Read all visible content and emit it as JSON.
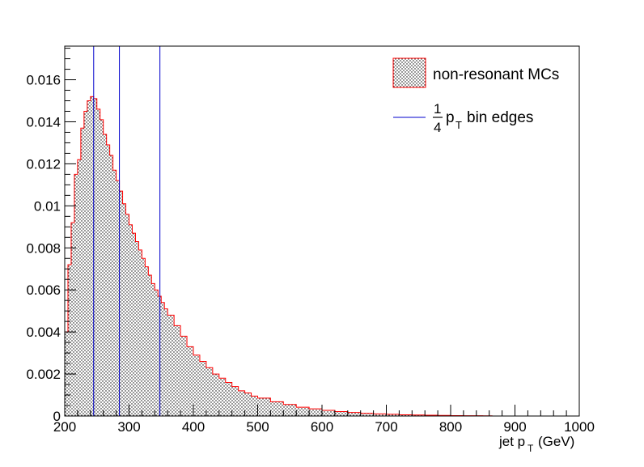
{
  "chart_data": {
    "type": "histogram",
    "title": "",
    "xlabel": "jet p",
    "xlabel_subscript": "T",
    "xlabel_unit": "(GeV)",
    "ylabel": "",
    "xlim": [
      200,
      1000
    ],
    "ylim": [
      0,
      0.0176
    ],
    "x_ticks": [
      200,
      300,
      400,
      500,
      600,
      700,
      800,
      900,
      1000
    ],
    "x_tick_labels": [
      "200",
      "300",
      "400",
      "500",
      "600",
      "700",
      "800",
      "900",
      "1000"
    ],
    "y_ticks": [
      0,
      0.002,
      0.004,
      0.006,
      0.008,
      0.01,
      0.012,
      0.014,
      0.016
    ],
    "y_tick_labels": [
      "0",
      "0.002",
      "0.004",
      "0.006",
      "0.008",
      "0.01",
      "0.012",
      "0.014",
      "0.016"
    ],
    "grid": false,
    "legend_position": "top-right",
    "series": [
      {
        "name": "non-resonant MCs",
        "color": "#ff0000",
        "fill": "dotted",
        "points": [
          [
            200,
            0.004
          ],
          [
            205,
            0.0072
          ],
          [
            210,
            0.0092
          ],
          [
            215,
            0.0115
          ],
          [
            220,
            0.0122
          ],
          [
            225,
            0.0137
          ],
          [
            230,
            0.0145
          ],
          [
            235,
            0.015
          ],
          [
            240,
            0.0152
          ],
          [
            245,
            0.0151
          ],
          [
            250,
            0.0146
          ],
          [
            255,
            0.0141
          ],
          [
            260,
            0.0134
          ],
          [
            265,
            0.0129
          ],
          [
            270,
            0.0124
          ],
          [
            275,
            0.0117
          ],
          [
            280,
            0.0112
          ],
          [
            285,
            0.0107
          ],
          [
            290,
            0.0101
          ],
          [
            295,
            0.0096
          ],
          [
            300,
            0.0091
          ],
          [
            305,
            0.0087
          ],
          [
            310,
            0.0083
          ],
          [
            315,
            0.0079
          ],
          [
            320,
            0.0075
          ],
          [
            325,
            0.0071
          ],
          [
            330,
            0.0067
          ],
          [
            335,
            0.0063
          ],
          [
            340,
            0.006
          ],
          [
            345,
            0.0057
          ],
          [
            350,
            0.0054
          ],
          [
            355,
            0.0051
          ],
          [
            360,
            0.0048
          ],
          [
            370,
            0.0043
          ],
          [
            380,
            0.0038
          ],
          [
            390,
            0.0033
          ],
          [
            400,
            0.0029
          ],
          [
            410,
            0.0026
          ],
          [
            420,
            0.0023
          ],
          [
            430,
            0.002
          ],
          [
            440,
            0.0018
          ],
          [
            450,
            0.0016
          ],
          [
            460,
            0.0014
          ],
          [
            470,
            0.0012
          ],
          [
            480,
            0.0011
          ],
          [
            490,
            0.00095
          ],
          [
            500,
            0.00085
          ],
          [
            520,
            0.00068
          ],
          [
            540,
            0.00055
          ],
          [
            560,
            0.00042
          ],
          [
            580,
            0.00034
          ],
          [
            600,
            0.00027
          ],
          [
            620,
            0.00021
          ],
          [
            640,
            0.00017
          ],
          [
            660,
            0.00013
          ],
          [
            680,
            0.0001
          ],
          [
            700,
            8e-05
          ],
          [
            720,
            6e-05
          ],
          [
            740,
            5e-05
          ],
          [
            760,
            4e-05
          ],
          [
            780,
            3e-05
          ],
          [
            800,
            2e-05
          ],
          [
            820,
            1.5e-05
          ],
          [
            850,
            1e-05
          ]
        ]
      }
    ],
    "bin_edges": {
      "name_prefix": "1/4",
      "name_symbol": "p",
      "name_subscript": "T",
      "name_suffix": "bin edges",
      "color": "#0000cc",
      "values": [
        245,
        285,
        348
      ]
    }
  },
  "legend": {
    "items": [
      {
        "label": "non-resonant MCs"
      },
      {
        "frac_num": "1",
        "frac_den": "4",
        "symbol": "p",
        "subscript": "T",
        "label": "bin edges"
      }
    ]
  }
}
